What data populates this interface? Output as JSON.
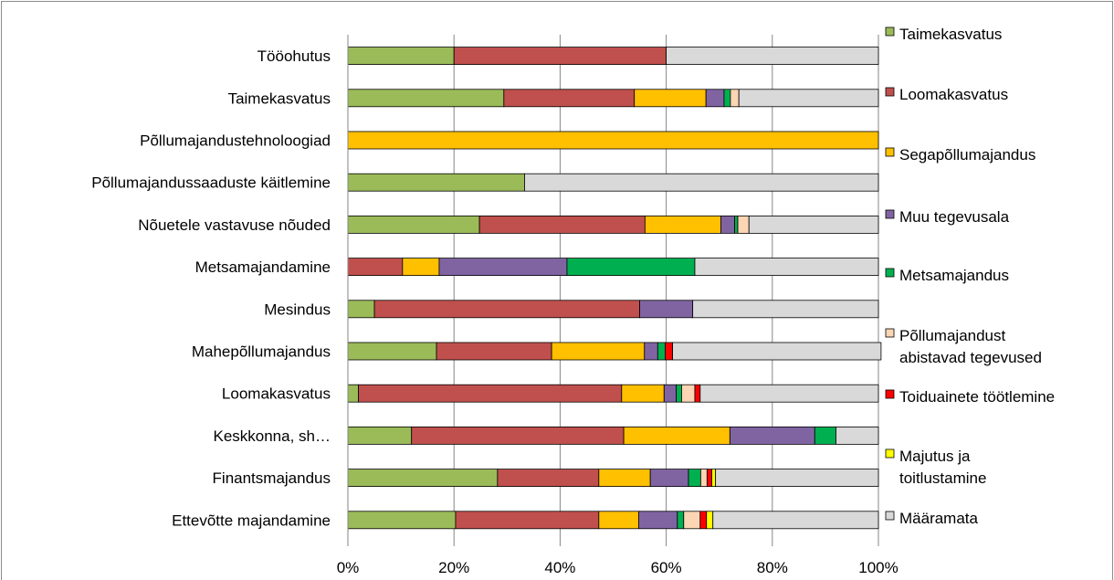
{
  "chart_data": {
    "type": "bar",
    "orientation": "horizontal",
    "stacked": "percent",
    "categories": [
      "Tööohutus",
      "Taimekasvatus",
      "Põllumajandustehnoloogiad",
      "Põllumajandussaaduste käitlemine",
      "Nõuetele vastavuse nõuded",
      "Metsamajandamine",
      "Mesindus",
      "Mahepõllumajandus",
      "Loomakasvatus",
      "Keskkonna, sh…",
      "Finantsmajandus",
      "Ettevõtte majandamine"
    ],
    "series": [
      {
        "name": "Taimekasvatus",
        "color": "#9bbb59",
        "values": [
          20,
          29.4,
          0,
          33.3,
          24.8,
          0,
          5,
          16.7,
          2,
          12,
          28.2,
          20.3
        ]
      },
      {
        "name": "Loomakasvatus",
        "color": "#c0504d",
        "values": [
          40,
          24.6,
          0,
          0,
          31.2,
          10.3,
          50,
          21.7,
          49.6,
          40,
          19.1,
          27
        ]
      },
      {
        "name": "Segapõllumajandus",
        "color": "#ffc000",
        "values": [
          0,
          13.5,
          100,
          0,
          14.3,
          6.9,
          0,
          17.5,
          8,
          20,
          9.7,
          7.5
        ]
      },
      {
        "name": "Muu tegevusala",
        "color": "#8064a2",
        "values": [
          0,
          3.4,
          0,
          0,
          2.6,
          24.1,
          10,
          2.5,
          2.3,
          16,
          7.2,
          7.3
        ]
      },
      {
        "name": "Metsamajandus",
        "color": "#00b050",
        "values": [
          0,
          1.2,
          0,
          0,
          0.6,
          24.1,
          0,
          1.4,
          1,
          4,
          2.3,
          1.2
        ]
      },
      {
        "name": "Põllumajandust abistavad tegevused",
        "color": "#fcd5b4",
        "values": [
          0,
          1.6,
          0,
          0,
          2.1,
          0,
          0,
          0,
          2.5,
          0,
          1.2,
          3.1
        ]
      },
      {
        "name": "Toiduainete töötlemine",
        "color": "#ff0000",
        "values": [
          0,
          0,
          0,
          0,
          0,
          0,
          0,
          1.4,
          1,
          0,
          0.9,
          1.2
        ]
      },
      {
        "name": "Majutus ja toitlustamine",
        "color": "#ffff00",
        "values": [
          0,
          0,
          0,
          0,
          0,
          0,
          0,
          0,
          0,
          0,
          0.7,
          1.2
        ]
      },
      {
        "name": "Määramata",
        "color": "#d9d9d9",
        "values": [
          40,
          26.3,
          0,
          66.7,
          24.4,
          34.6,
          35,
          39.3,
          33.6,
          8,
          30.7,
          31.2
        ]
      }
    ],
    "xticks": [
      "0%",
      "20%",
      "40%",
      "60%",
      "80%",
      "100%"
    ],
    "xlim": [
      0,
      100
    ],
    "grid": "vertical",
    "legend_position": "right",
    "title": "",
    "xlabel": "",
    "ylabel": ""
  }
}
